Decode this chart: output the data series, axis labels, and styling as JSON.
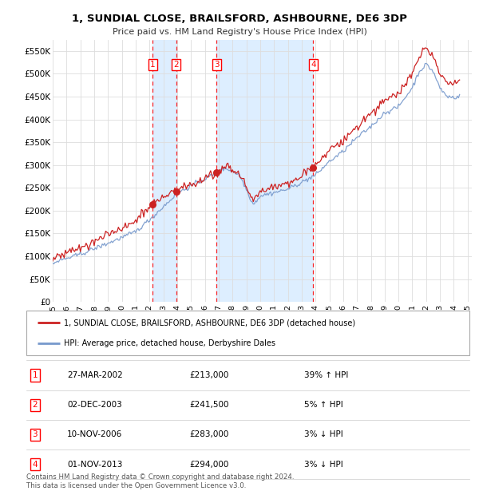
{
  "title1": "1, SUNDIAL CLOSE, BRAILSFORD, ASHBOURNE, DE6 3DP",
  "title2": "Price paid vs. HM Land Registry's House Price Index (HPI)",
  "ylabel_ticks": [
    "£0",
    "£50K",
    "£100K",
    "£150K",
    "£200K",
    "£250K",
    "£300K",
    "£350K",
    "£400K",
    "£450K",
    "£500K",
    "£550K"
  ],
  "ytick_values": [
    0,
    50000,
    100000,
    150000,
    200000,
    250000,
    300000,
    350000,
    400000,
    450000,
    500000,
    550000
  ],
  "ylim": [
    0,
    575000
  ],
  "plot_bg_color": "#ffffff",
  "shade_color": "#ddeeff",
  "hatch_color": "#ccddee",
  "legend1_label": "1, SUNDIAL CLOSE, BRAILSFORD, ASHBOURNE, DE6 3DP (detached house)",
  "legend2_label": "HPI: Average price, detached house, Derbyshire Dales",
  "transactions": [
    {
      "num": 1,
      "date": "27-MAR-2002",
      "price": "£213,000",
      "hpi": "39% ↑ HPI",
      "year_x": 2002.23
    },
    {
      "num": 2,
      "date": "02-DEC-2003",
      "price": "£241,500",
      "hpi": "5% ↑ HPI",
      "year_x": 2003.92
    },
    {
      "num": 3,
      "date": "10-NOV-2006",
      "price": "£283,000",
      "hpi": "3% ↓ HPI",
      "year_x": 2006.86
    },
    {
      "num": 4,
      "date": "01-NOV-2013",
      "price": "£294,000",
      "hpi": "3% ↓ HPI",
      "year_x": 2013.84
    }
  ],
  "footer": "Contains HM Land Registry data © Crown copyright and database right 2024.\nThis data is licensed under the Open Government Licence v3.0.",
  "red_color": "#cc2222",
  "blue_color": "#7799cc",
  "xlim": [
    1995.0,
    2025.3
  ],
  "seed": 42,
  "noise_scale_hpi": 3500,
  "noise_scale_red": 8000
}
